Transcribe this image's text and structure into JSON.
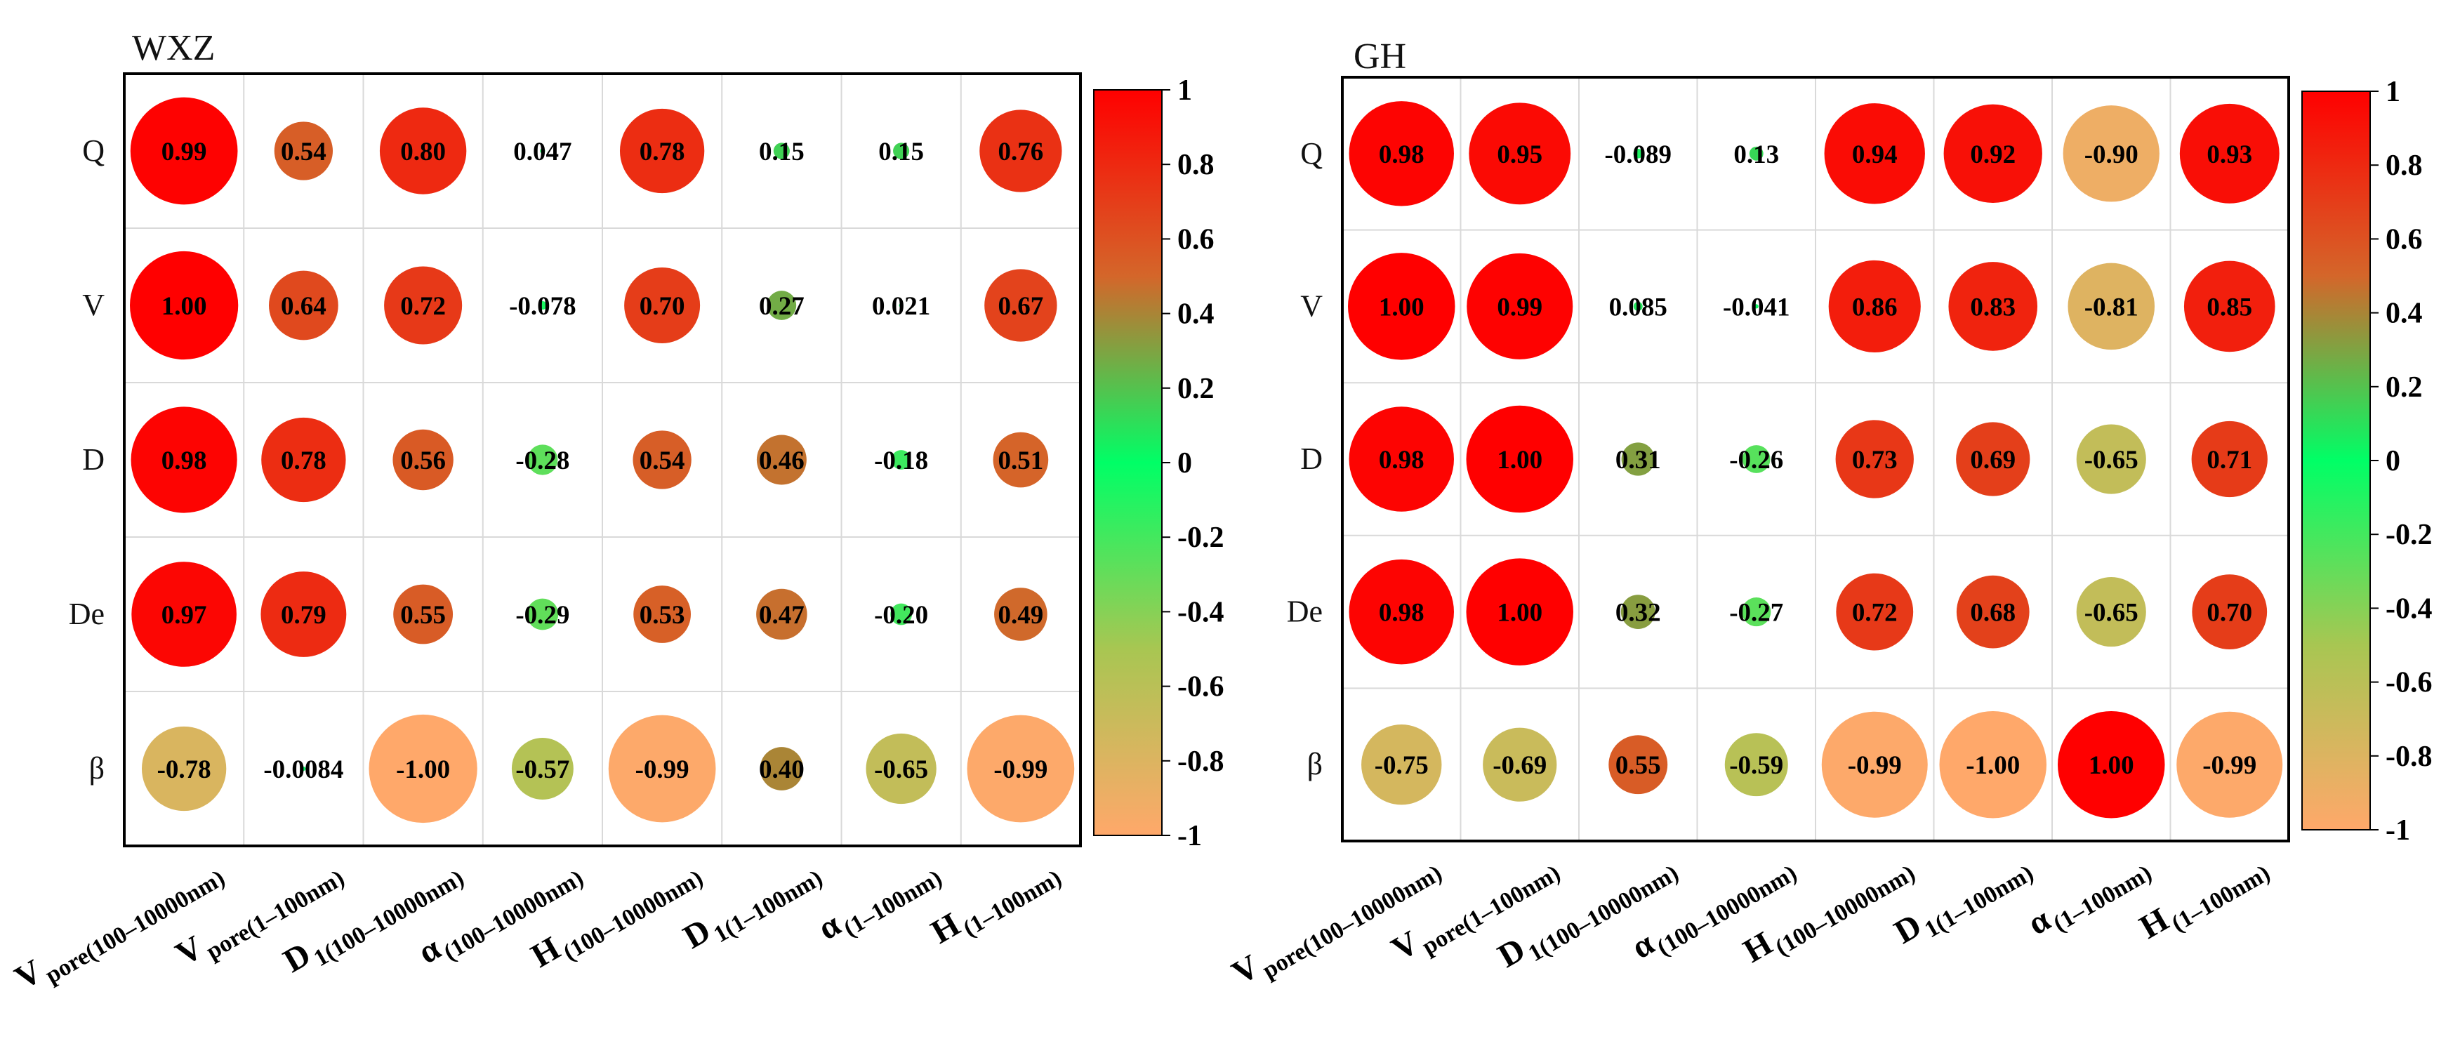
{
  "chart_data": [
    {
      "type": "heatmap",
      "title": "WXZ",
      "rows": [
        "Q",
        "V",
        "D",
        "De",
        "β"
      ],
      "columns": [
        {
          "main": "V",
          "sub": "pore(100–10000nm)"
        },
        {
          "main": "V",
          "sub": "pore(1–100nm)"
        },
        {
          "main": "D",
          "sub": "1(100–10000nm)"
        },
        {
          "main": "α",
          "sub": "(100–10000nm)"
        },
        {
          "main": "H",
          "sub": "(100–10000nm)"
        },
        {
          "main": "D",
          "sub": "1(1–100nm)"
        },
        {
          "main": "α",
          "sub": "(1–100nm)"
        },
        {
          "main": "H",
          "sub": "(1–100nm)"
        }
      ],
      "values": [
        [
          0.99,
          0.54,
          0.8,
          0.047,
          0.78,
          0.15,
          0.15,
          0.76
        ],
        [
          1.0,
          0.64,
          0.72,
          -0.078,
          0.7,
          0.27,
          0.021,
          0.67
        ],
        [
          0.98,
          0.78,
          0.56,
          -0.28,
          0.54,
          0.46,
          -0.18,
          0.51
        ],
        [
          0.97,
          0.79,
          0.55,
          -0.29,
          0.53,
          0.47,
          -0.2,
          0.49
        ],
        [
          -0.78,
          -0.0084,
          -1.0,
          -0.57,
          -0.99,
          0.4,
          -0.65,
          -0.99
        ]
      ],
      "labels": [
        [
          "0.99",
          "0.54",
          "0.80",
          "0.047",
          "0.78",
          "0.15",
          "0.15",
          "0.76"
        ],
        [
          "1.00",
          "0.64",
          "0.72",
          "-0.078",
          "0.70",
          "0.27",
          "0.021",
          "0.67"
        ],
        [
          "0.98",
          "0.78",
          "0.56",
          "-0.28",
          "0.54",
          "0.46",
          "-0.18",
          "0.51"
        ],
        [
          "0.97",
          "0.79",
          "0.55",
          "-0.29",
          "0.53",
          "0.47",
          "-0.20",
          "0.49"
        ],
        [
          "-0.78",
          "-0.0084",
          "-1.00",
          "-0.57",
          "-0.99",
          "0.40",
          "-0.65",
          "-0.99"
        ]
      ],
      "colorbar": {
        "range": [
          -1,
          1
        ],
        "ticks": [
          "1",
          "0.8",
          "0.6",
          "0.4",
          "0.2",
          "0",
          "-0.2",
          "-0.4",
          "-0.6",
          "-0.8",
          "-1"
        ]
      },
      "grid": true
    },
    {
      "type": "heatmap",
      "title": "GH",
      "rows": [
        "Q",
        "V",
        "D",
        "De",
        "β"
      ],
      "columns": [
        {
          "main": "V",
          "sub": "pore(100–10000nm)"
        },
        {
          "main": "V",
          "sub": "pore(1–100nm)"
        },
        {
          "main": "D",
          "sub": "1(100–10000nm)"
        },
        {
          "main": "α",
          "sub": "(100–10000nm)"
        },
        {
          "main": "H",
          "sub": "(100–10000nm)"
        },
        {
          "main": "D",
          "sub": "1(1–100nm)"
        },
        {
          "main": "α",
          "sub": "(1–100nm)"
        },
        {
          "main": "H",
          "sub": "(1–100nm)"
        }
      ],
      "values": [
        [
          0.98,
          0.95,
          -0.089,
          0.13,
          0.94,
          0.92,
          -0.9,
          0.93
        ],
        [
          1.0,
          0.99,
          0.085,
          -0.041,
          0.86,
          0.83,
          -0.81,
          0.85
        ],
        [
          0.98,
          1.0,
          0.31,
          -0.26,
          0.73,
          0.69,
          -0.65,
          0.71
        ],
        [
          0.98,
          1.0,
          0.32,
          -0.27,
          0.72,
          0.68,
          -0.65,
          0.7
        ],
        [
          -0.75,
          -0.69,
          0.55,
          -0.59,
          -0.99,
          -1.0,
          1.0,
          -0.99
        ]
      ],
      "labels": [
        [
          "0.98",
          "0.95",
          "-0.089",
          "0.13",
          "0.94",
          "0.92",
          "-0.90",
          "0.93"
        ],
        [
          "1.00",
          "0.99",
          "0.085",
          "-0.041",
          "0.86",
          "0.83",
          "-0.81",
          "0.85"
        ],
        [
          "0.98",
          "1.00",
          "0.31",
          "-0.26",
          "0.73",
          "0.69",
          "-0.65",
          "0.71"
        ],
        [
          "0.98",
          "1.00",
          "0.32",
          "-0.27",
          "0.72",
          "0.68",
          "-0.65",
          "0.70"
        ],
        [
          "-0.75",
          "-0.69",
          "0.55",
          "-0.59",
          "-0.99",
          "-1.00",
          "1.00",
          "-0.99"
        ]
      ],
      "colorbar": {
        "range": [
          -1,
          1
        ],
        "ticks": [
          "1",
          "0.8",
          "0.6",
          "0.4",
          "0.2",
          "0",
          "-0.2",
          "-0.4",
          "-0.6",
          "-0.8",
          "-1"
        ]
      },
      "grid": true
    }
  ]
}
